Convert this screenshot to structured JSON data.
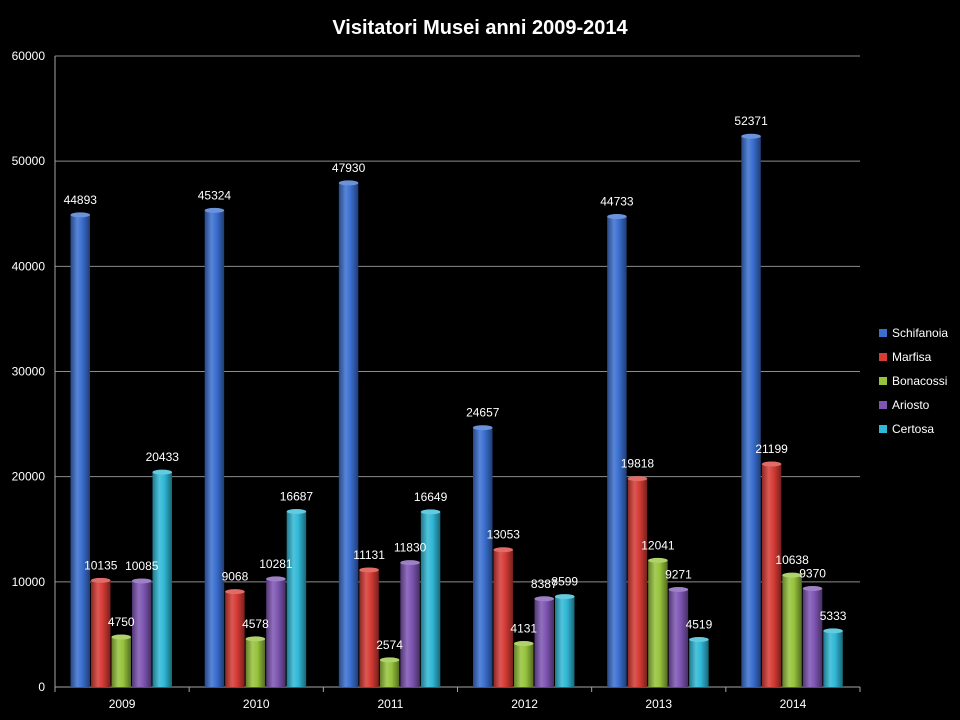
{
  "chart_data": {
    "type": "bar",
    "title": "Visitatori Musei anni 2009-2014",
    "xlabel": "",
    "ylabel": "",
    "categories": [
      "2009",
      "2010",
      "2011",
      "2012",
      "2013",
      "2014"
    ],
    "ylim": [
      0,
      60000
    ],
    "yticks": [
      "0",
      "10000",
      "20000",
      "30000",
      "40000",
      "50000",
      "60000"
    ],
    "grid": true,
    "legend_position": "right",
    "series": [
      {
        "name": "Schifanoia",
        "color": "#3a6fd0",
        "values": [
          44893,
          45324,
          47930,
          24657,
          44733,
          52371
        ]
      },
      {
        "name": "Marfisa",
        "color": "#d63b35",
        "values": [
          10135,
          9068,
          11131,
          13053,
          19818,
          21199
        ]
      },
      {
        "name": "Bonacossi",
        "color": "#96c33c",
        "values": [
          4750,
          4578,
          2574,
          4131,
          12041,
          10638
        ]
      },
      {
        "name": "Ariosto",
        "color": "#7e55b3",
        "values": [
          10085,
          10281,
          11830,
          8387,
          9271,
          9370
        ]
      },
      {
        "name": "Certosa",
        "color": "#30b8d6",
        "values": [
          20433,
          16687,
          16649,
          8599,
          4519,
          5333
        ]
      }
    ]
  }
}
